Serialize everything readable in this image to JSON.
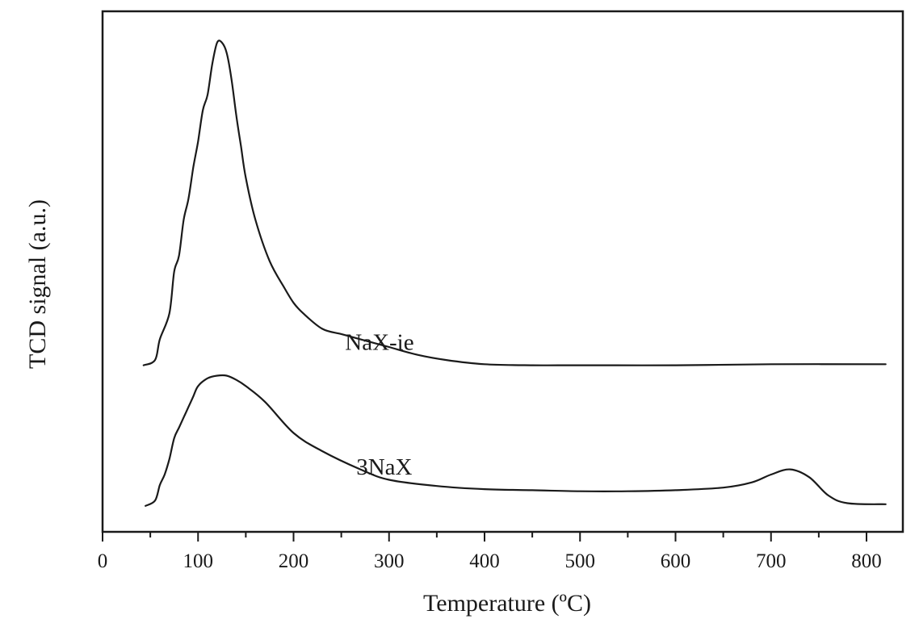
{
  "chart_data": {
    "type": "line",
    "xlabel": "Temperature (ºC)",
    "ylabel": "TCD signal (a.u.)",
    "xlim": [
      0,
      850
    ],
    "ylim": [
      0,
      100
    ],
    "x_ticks": [
      "0",
      "100",
      "200",
      "300",
      "400",
      "500",
      "600",
      "700",
      "800"
    ],
    "x_tick_values": [
      0,
      100,
      200,
      300,
      400,
      500,
      600,
      700,
      800
    ],
    "x_minor_ticks": [
      50,
      150,
      250,
      350,
      450,
      550,
      650,
      750
    ],
    "y_ticks_shown": false,
    "grid": false,
    "legend": "none",
    "line_color": "#1a1a1a",
    "series": [
      {
        "name": "NaX-ie",
        "x": [
          43,
          55,
          60,
          70,
          75,
          80,
          85,
          90,
          95,
          100,
          105,
          110,
          115,
          120,
          125,
          130,
          135,
          140,
          145,
          150,
          160,
          175,
          190,
          200,
          210,
          230,
          250,
          270,
          300,
          330,
          360,
          400,
          450,
          500,
          600,
          700,
          820
        ],
        "y": [
          32,
          33,
          37,
          42,
          50,
          53,
          60,
          64,
          70,
          75,
          81,
          84,
          90,
          94,
          94,
          92,
          87,
          80,
          74,
          68,
          60,
          52,
          47,
          44,
          42,
          39,
          38,
          37,
          35.5,
          34,
          33,
          32.2,
          32,
          32,
          32,
          32.2,
          32.2
        ]
      },
      {
        "name": "3NaX",
        "x": [
          45,
          55,
          60,
          65,
          70,
          75,
          80,
          85,
          90,
          95,
          100,
          110,
          120,
          130,
          140,
          150,
          170,
          200,
          230,
          270,
          300,
          350,
          400,
          450,
          500,
          550,
          600,
          650,
          680,
          700,
          720,
          740,
          760,
          780,
          820
        ],
        "y": [
          5,
          6,
          9,
          11,
          14,
          18,
          20,
          22,
          24,
          26,
          28,
          29.5,
          30,
          30,
          29.2,
          28,
          25,
          19,
          15.5,
          12,
          10,
          8.8,
          8.2,
          8,
          7.8,
          7.8,
          8,
          8.5,
          9.5,
          11,
          12,
          10.5,
          7,
          5.5,
          5.3
        ]
      }
    ],
    "annotations": [
      {
        "text": "NaX-ie",
        "x": 290,
        "y": 35
      },
      {
        "text": "3NaX",
        "x": 295,
        "y": 11
      }
    ]
  }
}
